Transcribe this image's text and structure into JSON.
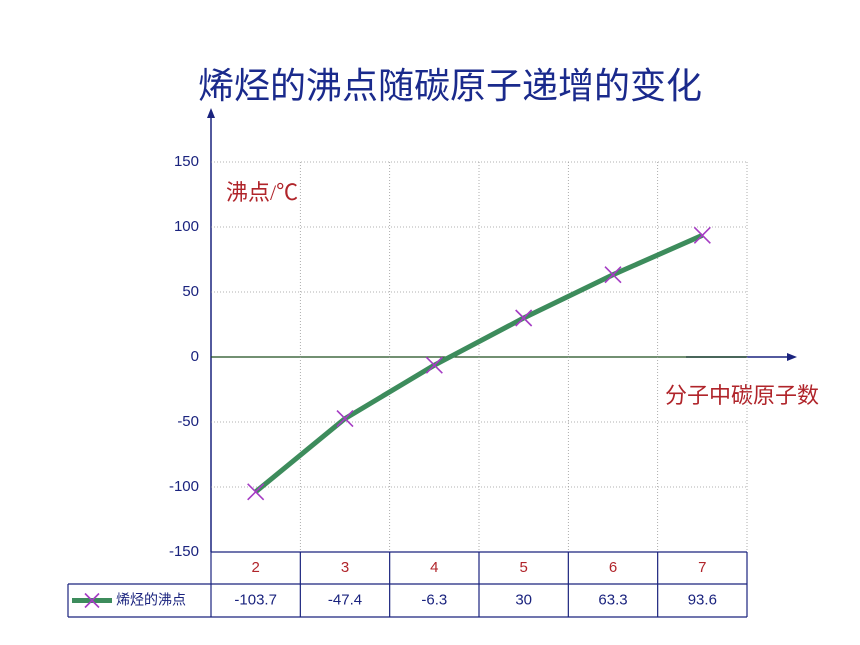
{
  "chart_data": {
    "type": "line",
    "title": "烯烃的沸点随碳原子递增的变化",
    "y_label": "沸点/℃",
    "x_label": "分子中碳原子数",
    "categories": [
      "2",
      "3",
      "4",
      "5",
      "6",
      "7"
    ],
    "series": [
      {
        "name": "烯烃的沸点",
        "color": "#3d8c5c",
        "marker_color": "#a53cc4",
        "values": [
          -103.7,
          -47.4,
          -6.3,
          30,
          63.3,
          93.6
        ]
      }
    ],
    "ylim": [
      -150,
      150
    ],
    "yticks": [
      -150,
      -100,
      -50,
      0,
      50,
      100,
      150
    ],
    "grid": true
  }
}
